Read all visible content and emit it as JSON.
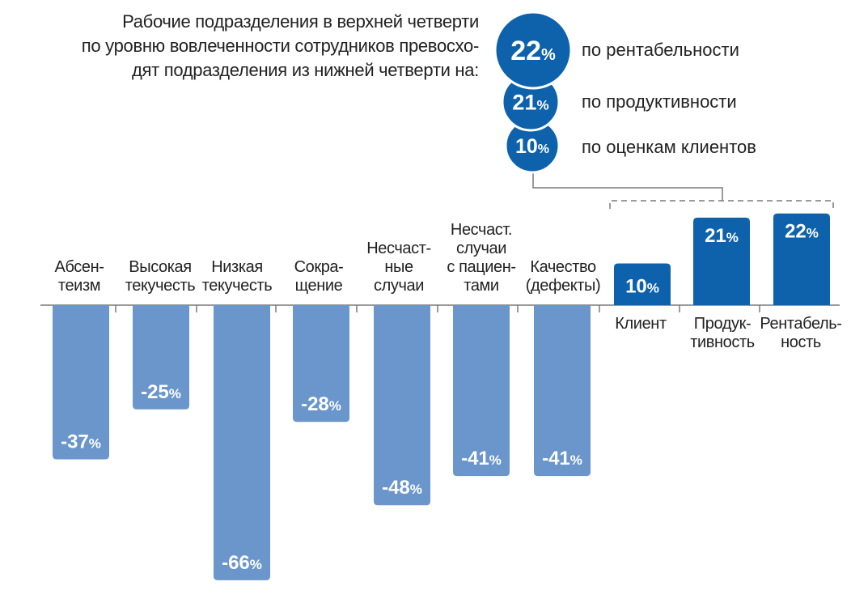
{
  "header": {
    "lines": [
      "Рабочие подразделения в верхней четверти",
      "по уровню вовлеченности сотрудников превосхо-",
      "дят подразделения из нижней четверти на:"
    ]
  },
  "highlights": [
    {
      "value": "22",
      "unit": "%",
      "label": "по рентабельности"
    },
    {
      "value": "21",
      "unit": "%",
      "label": "по продуктивности"
    },
    {
      "value": "10",
      "unit": "%",
      "label": "по оценкам клиентов"
    }
  ],
  "colors": {
    "negative_bar": "#6a96cb",
    "positive_bar": "#0e62ac",
    "circle": "#0e62ac",
    "axis": "#7a7a7a",
    "text": "#222222"
  },
  "chart_data": {
    "type": "bar",
    "categories": [
      [
        "Абсен-",
        "теизм"
      ],
      [
        "Высокая",
        "текучесть"
      ],
      [
        "Низкая",
        "текучесть"
      ],
      [
        "Сокра-",
        "щение"
      ],
      [
        "Несчаст-",
        "ные",
        "случаи"
      ],
      [
        "Несчаст.",
        "случаи",
        "с пациен-",
        "тами"
      ],
      [
        "Качество",
        "(дефекты)"
      ],
      [
        "Клиент"
      ],
      [
        "Продук-",
        "тивность"
      ],
      [
        "Рентабель-",
        "ность"
      ]
    ],
    "values": [
      -37,
      -25,
      -66,
      -28,
      -48,
      -41,
      -41,
      10,
      21,
      22
    ],
    "value_labels": [
      "-37",
      "-25",
      "-66",
      "-28",
      "-48",
      "-41",
      "-41",
      "10",
      "21",
      "22"
    ],
    "unit": "%",
    "ylim": [
      -70,
      25
    ],
    "grid": false,
    "legend": "none"
  }
}
